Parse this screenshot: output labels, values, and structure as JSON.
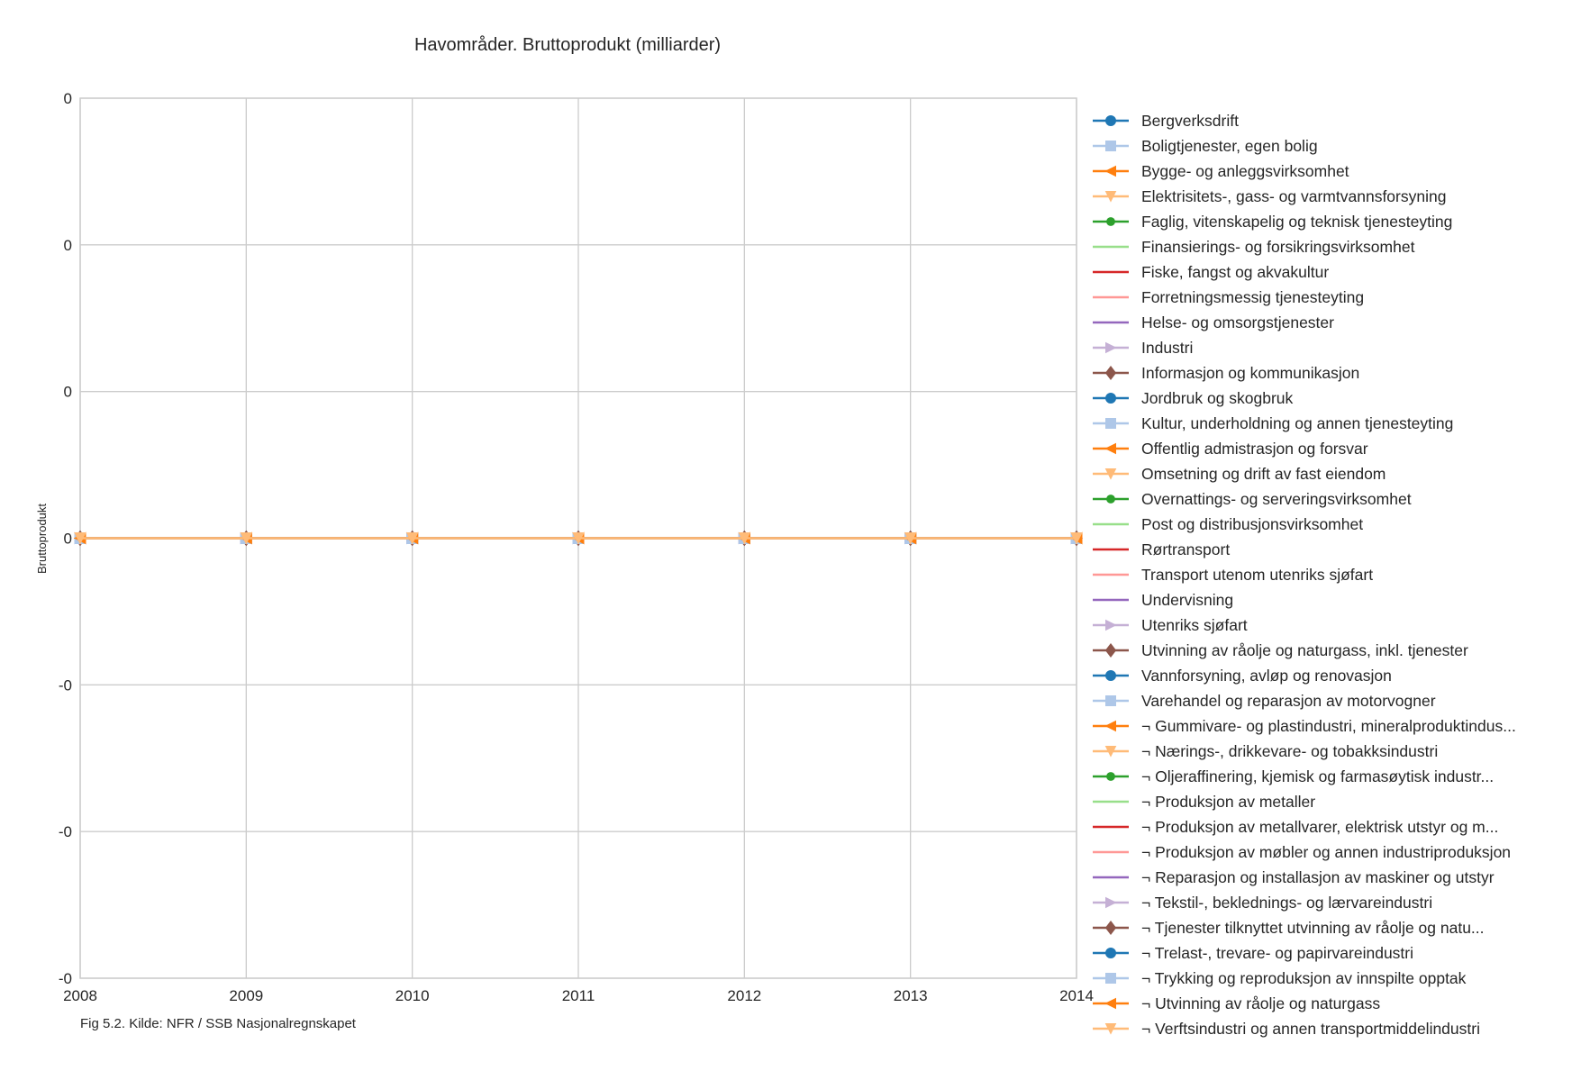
{
  "caption": "Fig 5.2. Kilde: NFR / SSB Nasjonalregnskapet",
  "chart_data": {
    "type": "line",
    "title": "Havområder. Bruttoprodukt (milliarder)",
    "xlabel": "",
    "ylabel": "Bruttoprodukt",
    "x": [
      2008,
      2009,
      2010,
      2011,
      2012,
      2013,
      2014
    ],
    "x_tick_labels": [
      "2008",
      "2009",
      "2010",
      "2011",
      "2012",
      "2013",
      "2014"
    ],
    "y_tick_labels": [
      "0",
      "0",
      "0",
      "0",
      "-0",
      "-0",
      "-0"
    ],
    "ylim": [
      -3e-07,
      3e-07
    ],
    "grid": true,
    "legend_position": "right",
    "series": [
      {
        "name": "Bergverksdrift",
        "values": [
          0,
          0,
          0,
          0,
          0,
          0,
          0
        ],
        "color": "#1f77b4",
        "marker": "circle"
      },
      {
        "name": "Boligtjenester, egen bolig",
        "values": [
          0,
          0,
          0,
          0,
          0,
          0,
          0
        ],
        "color": "#aec7e8",
        "marker": "square"
      },
      {
        "name": "Bygge- og anleggsvirksomhet",
        "values": [
          0,
          0,
          0,
          0,
          0,
          0,
          0
        ],
        "color": "#ff7f0e",
        "marker": "triangle-left"
      },
      {
        "name": "Elektrisitets-, gass- og varmtvannsforsyning",
        "values": [
          0,
          0,
          0,
          0,
          0,
          0,
          0
        ],
        "color": "#ffbb78",
        "marker": "triangle-down"
      },
      {
        "name": "Faglig, vitenskapelig og teknisk tjenesteyting",
        "values": [
          0,
          0,
          0,
          0,
          0,
          0,
          0
        ],
        "color": "#2ca02c",
        "marker": "circle-small"
      },
      {
        "name": "Finansierings- og forsikringsvirksomhet",
        "values": [
          0,
          0,
          0,
          0,
          0,
          0,
          0
        ],
        "color": "#98df8a",
        "marker": "none"
      },
      {
        "name": "Fiske, fangst og akvakultur",
        "values": [
          0,
          0,
          0,
          0,
          0,
          0,
          0
        ],
        "color": "#d62728",
        "marker": "none"
      },
      {
        "name": "Forretningsmessig tjenesteyting",
        "values": [
          0,
          0,
          0,
          0,
          0,
          0,
          0
        ],
        "color": "#ff9896",
        "marker": "none"
      },
      {
        "name": "Helse- og omsorgstjenester",
        "values": [
          0,
          0,
          0,
          0,
          0,
          0,
          0
        ],
        "color": "#9467bd",
        "marker": "none"
      },
      {
        "name": "Industri",
        "values": [
          0,
          0,
          0,
          0,
          0,
          0,
          0
        ],
        "color": "#c5b0d5",
        "marker": "triangle-right"
      },
      {
        "name": "Informasjon og kommunikasjon",
        "values": [
          0,
          0,
          0,
          0,
          0,
          0,
          0
        ],
        "color": "#8c564b",
        "marker": "diamond"
      },
      {
        "name": "Jordbruk og skogbruk",
        "values": [
          0,
          0,
          0,
          0,
          0,
          0,
          0
        ],
        "color": "#1f77b4",
        "marker": "circle"
      },
      {
        "name": "Kultur, underholdning og annen tjenesteyting",
        "values": [
          0,
          0,
          0,
          0,
          0,
          0,
          0
        ],
        "color": "#aec7e8",
        "marker": "square"
      },
      {
        "name": "Offentlig admistrasjon og forsvar",
        "values": [
          0,
          0,
          0,
          0,
          0,
          0,
          0
        ],
        "color": "#ff7f0e",
        "marker": "triangle-left"
      },
      {
        "name": "Omsetning og drift av fast eiendom",
        "values": [
          0,
          0,
          0,
          0,
          0,
          0,
          0
        ],
        "color": "#ffbb78",
        "marker": "triangle-down"
      },
      {
        "name": "Overnattings- og serveringsvirksomhet",
        "values": [
          0,
          0,
          0,
          0,
          0,
          0,
          0
        ],
        "color": "#2ca02c",
        "marker": "circle-small"
      },
      {
        "name": "Post og distribusjonsvirksomhet",
        "values": [
          0,
          0,
          0,
          0,
          0,
          0,
          0
        ],
        "color": "#98df8a",
        "marker": "none"
      },
      {
        "name": "Rørtransport",
        "values": [
          0,
          0,
          0,
          0,
          0,
          0,
          0
        ],
        "color": "#d62728",
        "marker": "none"
      },
      {
        "name": "Transport utenom utenriks sjøfart",
        "values": [
          0,
          0,
          0,
          0,
          0,
          0,
          0
        ],
        "color": "#ff9896",
        "marker": "none"
      },
      {
        "name": "Undervisning",
        "values": [
          0,
          0,
          0,
          0,
          0,
          0,
          0
        ],
        "color": "#9467bd",
        "marker": "none"
      },
      {
        "name": "Utenriks sjøfart",
        "values": [
          0,
          0,
          0,
          0,
          0,
          0,
          0
        ],
        "color": "#c5b0d5",
        "marker": "triangle-right"
      },
      {
        "name": "Utvinning av råolje og naturgass, inkl. tjenester",
        "values": [
          0,
          0,
          0,
          0,
          0,
          0,
          0
        ],
        "color": "#8c564b",
        "marker": "diamond"
      },
      {
        "name": "Vannforsyning, avløp og renovasjon",
        "values": [
          0,
          0,
          0,
          0,
          0,
          0,
          0
        ],
        "color": "#1f77b4",
        "marker": "circle"
      },
      {
        "name": "Varehandel og reparasjon av motorvogner",
        "values": [
          0,
          0,
          0,
          0,
          0,
          0,
          0
        ],
        "color": "#aec7e8",
        "marker": "square"
      },
      {
        "name": "¬ Gummivare- og plastindustri, mineralproduktindus...",
        "values": [
          0,
          0,
          0,
          0,
          0,
          0,
          0
        ],
        "color": "#ff7f0e",
        "marker": "triangle-left"
      },
      {
        "name": "¬ Nærings-, drikkevare- og tobakksindustri",
        "values": [
          0,
          0,
          0,
          0,
          0,
          0,
          0
        ],
        "color": "#ffbb78",
        "marker": "triangle-down"
      },
      {
        "name": "¬ Oljeraffinering, kjemisk og farmasøytisk industr...",
        "values": [
          0,
          0,
          0,
          0,
          0,
          0,
          0
        ],
        "color": "#2ca02c",
        "marker": "circle-small"
      },
      {
        "name": "¬ Produksjon av metaller",
        "values": [
          0,
          0,
          0,
          0,
          0,
          0,
          0
        ],
        "color": "#98df8a",
        "marker": "none"
      },
      {
        "name": "¬ Produksjon av metallvarer, elektrisk utstyr og m...",
        "values": [
          0,
          0,
          0,
          0,
          0,
          0,
          0
        ],
        "color": "#d62728",
        "marker": "none"
      },
      {
        "name": "¬ Produksjon av møbler og annen industriproduksjon",
        "values": [
          0,
          0,
          0,
          0,
          0,
          0,
          0
        ],
        "color": "#ff9896",
        "marker": "none"
      },
      {
        "name": "¬ Reparasjon og installasjon av maskiner og utstyr",
        "values": [
          0,
          0,
          0,
          0,
          0,
          0,
          0
        ],
        "color": "#9467bd",
        "marker": "none"
      },
      {
        "name": "¬ Tekstil-, beklednings- og lærvareindustri",
        "values": [
          0,
          0,
          0,
          0,
          0,
          0,
          0
        ],
        "color": "#c5b0d5",
        "marker": "triangle-right"
      },
      {
        "name": "¬ Tjenester tilknyttet utvinning av råolje og natu...",
        "values": [
          0,
          0,
          0,
          0,
          0,
          0,
          0
        ],
        "color": "#8c564b",
        "marker": "diamond"
      },
      {
        "name": "¬ Trelast-, trevare- og papirvareindustri",
        "values": [
          0,
          0,
          0,
          0,
          0,
          0,
          0
        ],
        "color": "#1f77b4",
        "marker": "circle"
      },
      {
        "name": "¬ Trykking og reproduksjon av innspilte opptak",
        "values": [
          0,
          0,
          0,
          0,
          0,
          0,
          0
        ],
        "color": "#aec7e8",
        "marker": "square"
      },
      {
        "name": "¬ Utvinning av råolje og naturgass",
        "values": [
          0,
          0,
          0,
          0,
          0,
          0,
          0
        ],
        "color": "#ff7f0e",
        "marker": "triangle-left"
      },
      {
        "name": "¬ Verftsindustri og annen transportmiddelindustri",
        "values": [
          0,
          0,
          0,
          0,
          0,
          0,
          0
        ],
        "color": "#ffbb78",
        "marker": "triangle-down"
      }
    ]
  }
}
